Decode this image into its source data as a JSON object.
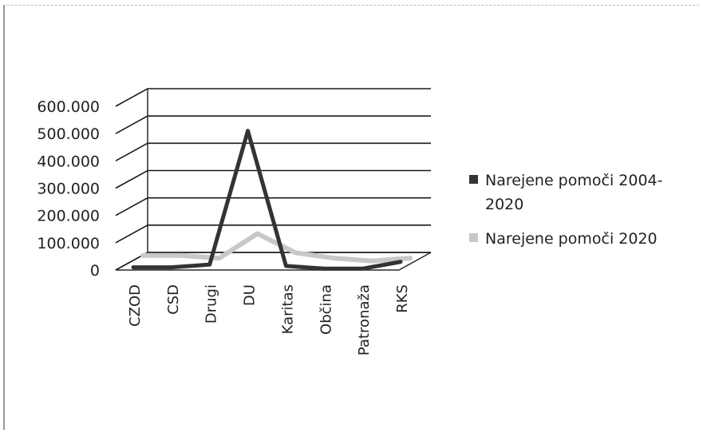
{
  "chart_data": {
    "type": "line",
    "title": "",
    "xlabel": "",
    "ylabel": "",
    "ylim": [
      0,
      600000
    ],
    "yticks": [
      "0",
      "100.000",
      "200.000",
      "300.000",
      "400.000",
      "500.000",
      "600.000"
    ],
    "categories": [
      "CZOD",
      "CSD",
      "Drugi",
      "DU",
      "Karitas",
      "Občina",
      "Patronaža",
      "RKS"
    ],
    "series": [
      {
        "name": "Narejene pomoči 2004-2020",
        "values": [
          10000,
          10000,
          20000,
          510000,
          15000,
          5000,
          5000,
          30000
        ],
        "color": "#333333"
      },
      {
        "name": "Narejene pomoči 2020",
        "values": [
          30000,
          30000,
          20000,
          110000,
          40000,
          20000,
          10000,
          20000
        ],
        "color": "#c8c8c8"
      }
    ],
    "legend_labels": [
      [
        "Narejene pomoči 2004-",
        "2020"
      ],
      [
        "Narejene pomoči 2020"
      ]
    ],
    "grid": true,
    "style": "3d",
    "legend_position": "right"
  }
}
